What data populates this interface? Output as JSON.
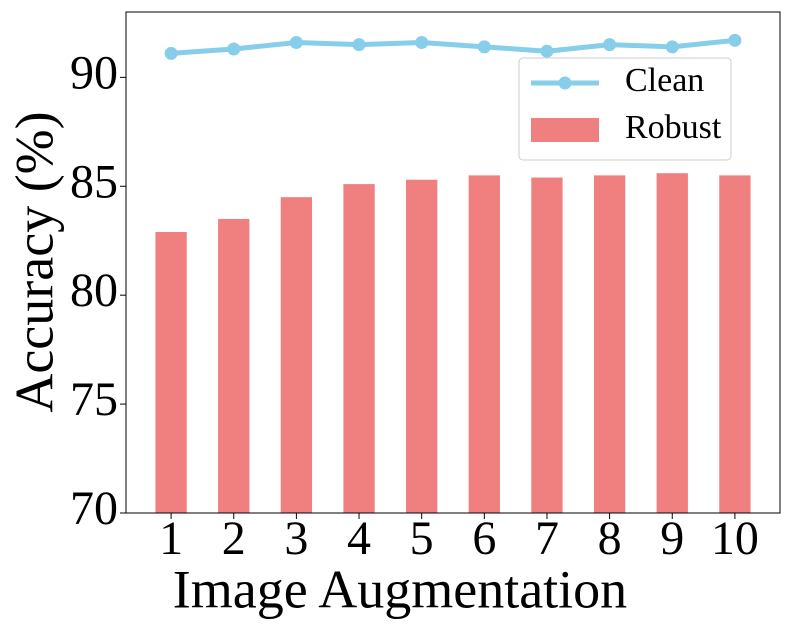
{
  "chart_data": {
    "type": "bar",
    "xlabel": "Image Augmentation",
    "ylabel": "Accuracy (%)",
    "categories": [
      "1",
      "2",
      "3",
      "4",
      "5",
      "6",
      "7",
      "8",
      "9",
      "10"
    ],
    "series": [
      {
        "name": "Clean",
        "type": "line",
        "color": "#87ceeb",
        "values": [
          91.1,
          91.3,
          91.6,
          91.5,
          91.6,
          91.4,
          91.2,
          91.5,
          91.4,
          91.7
        ]
      },
      {
        "name": "Robust",
        "type": "bar",
        "color": "#f08080",
        "values": [
          82.9,
          83.5,
          84.5,
          85.1,
          85.3,
          85.5,
          85.4,
          85.5,
          85.6,
          85.5
        ]
      }
    ],
    "ylim": [
      70,
      93
    ],
    "yticks": [
      70,
      75,
      80,
      85,
      90
    ],
    "legend": "upper right"
  }
}
